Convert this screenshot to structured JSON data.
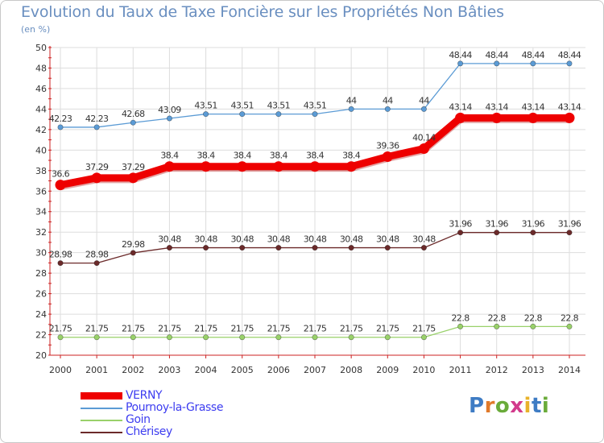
{
  "title": "Evolution du Taux de Taxe Foncière sur les Propriétés Non Bâties",
  "subtitle": "(en %)",
  "logo_text": "Proxiti",
  "colors": {
    "axis": "#cc2222",
    "grid": "#dddddd",
    "label": "#333333",
    "legend_text": "#3c3cf0"
  },
  "chart_data": {
    "type": "line",
    "title": "Evolution du Taux de Taxe Foncière sur les Propriétés Non Bâties",
    "ylabel": "(en %)",
    "xlabel": "",
    "ylim": [
      20,
      50
    ],
    "yticks": [
      20,
      22,
      24,
      26,
      28,
      30,
      32,
      34,
      36,
      38,
      40,
      42,
      44,
      46,
      48,
      50
    ],
    "grid": true,
    "legend_position": "bottom-left",
    "categories": [
      "2000",
      "2001",
      "2002",
      "2003",
      "2004",
      "2005",
      "2006",
      "2007",
      "2008",
      "2009",
      "2010",
      "2011",
      "2012",
      "2013",
      "2014"
    ],
    "series": [
      {
        "name": "VERNY",
        "color": "#ee0000",
        "thick": true,
        "values": [
          36.6,
          37.29,
          37.29,
          38.4,
          38.4,
          38.4,
          38.4,
          38.4,
          38.4,
          39.36,
          40.14,
          43.14,
          43.14,
          43.14,
          43.14
        ],
        "labels": [
          "36.6",
          "37.29",
          "37.29",
          "38.4",
          "38.4",
          "38.4",
          "38.4",
          "38.4",
          "38.4",
          "39.36",
          "40.14",
          "43.14",
          "43.14",
          "43.14",
          "43.14"
        ]
      },
      {
        "name": "Pournoy-la-Grasse",
        "color": "#5b9bd5",
        "thick": false,
        "values": [
          42.23,
          42.23,
          42.68,
          43.09,
          43.51,
          43.51,
          43.51,
          43.51,
          44,
          44,
          44,
          48.44,
          48.44,
          48.44,
          48.44
        ],
        "labels": [
          "42.23",
          "42.23",
          "42.68",
          "43.09",
          "43.51",
          "43.51",
          "43.51",
          "43.51",
          "44",
          "44",
          "44",
          "48.44",
          "48.44",
          "48.44",
          "48.44"
        ]
      },
      {
        "name": "Goin",
        "color": "#99d16a",
        "thick": false,
        "values": [
          21.75,
          21.75,
          21.75,
          21.75,
          21.75,
          21.75,
          21.75,
          21.75,
          21.75,
          21.75,
          21.75,
          22.8,
          22.8,
          22.8,
          22.8
        ],
        "labels": [
          "21.75",
          "21.75",
          "21.75",
          "21.75",
          "21.75",
          "21.75",
          "21.75",
          "21.75",
          "21.75",
          "21.75",
          "21.75",
          "22.8",
          "22.8",
          "22.8",
          "22.8"
        ]
      },
      {
        "name": "Chérisey",
        "color": "#6b2a2a",
        "thick": false,
        "values": [
          28.98,
          28.98,
          29.98,
          30.48,
          30.48,
          30.48,
          30.48,
          30.48,
          30.48,
          30.48,
          30.48,
          31.96,
          31.96,
          31.96,
          31.96
        ],
        "labels": [
          "28.98",
          "28.98",
          "29.98",
          "30.48",
          "30.48",
          "30.48",
          "30.48",
          "30.48",
          "30.48",
          "30.48",
          "30.48",
          "31.96",
          "31.96",
          "31.96",
          "31.96"
        ]
      }
    ]
  }
}
